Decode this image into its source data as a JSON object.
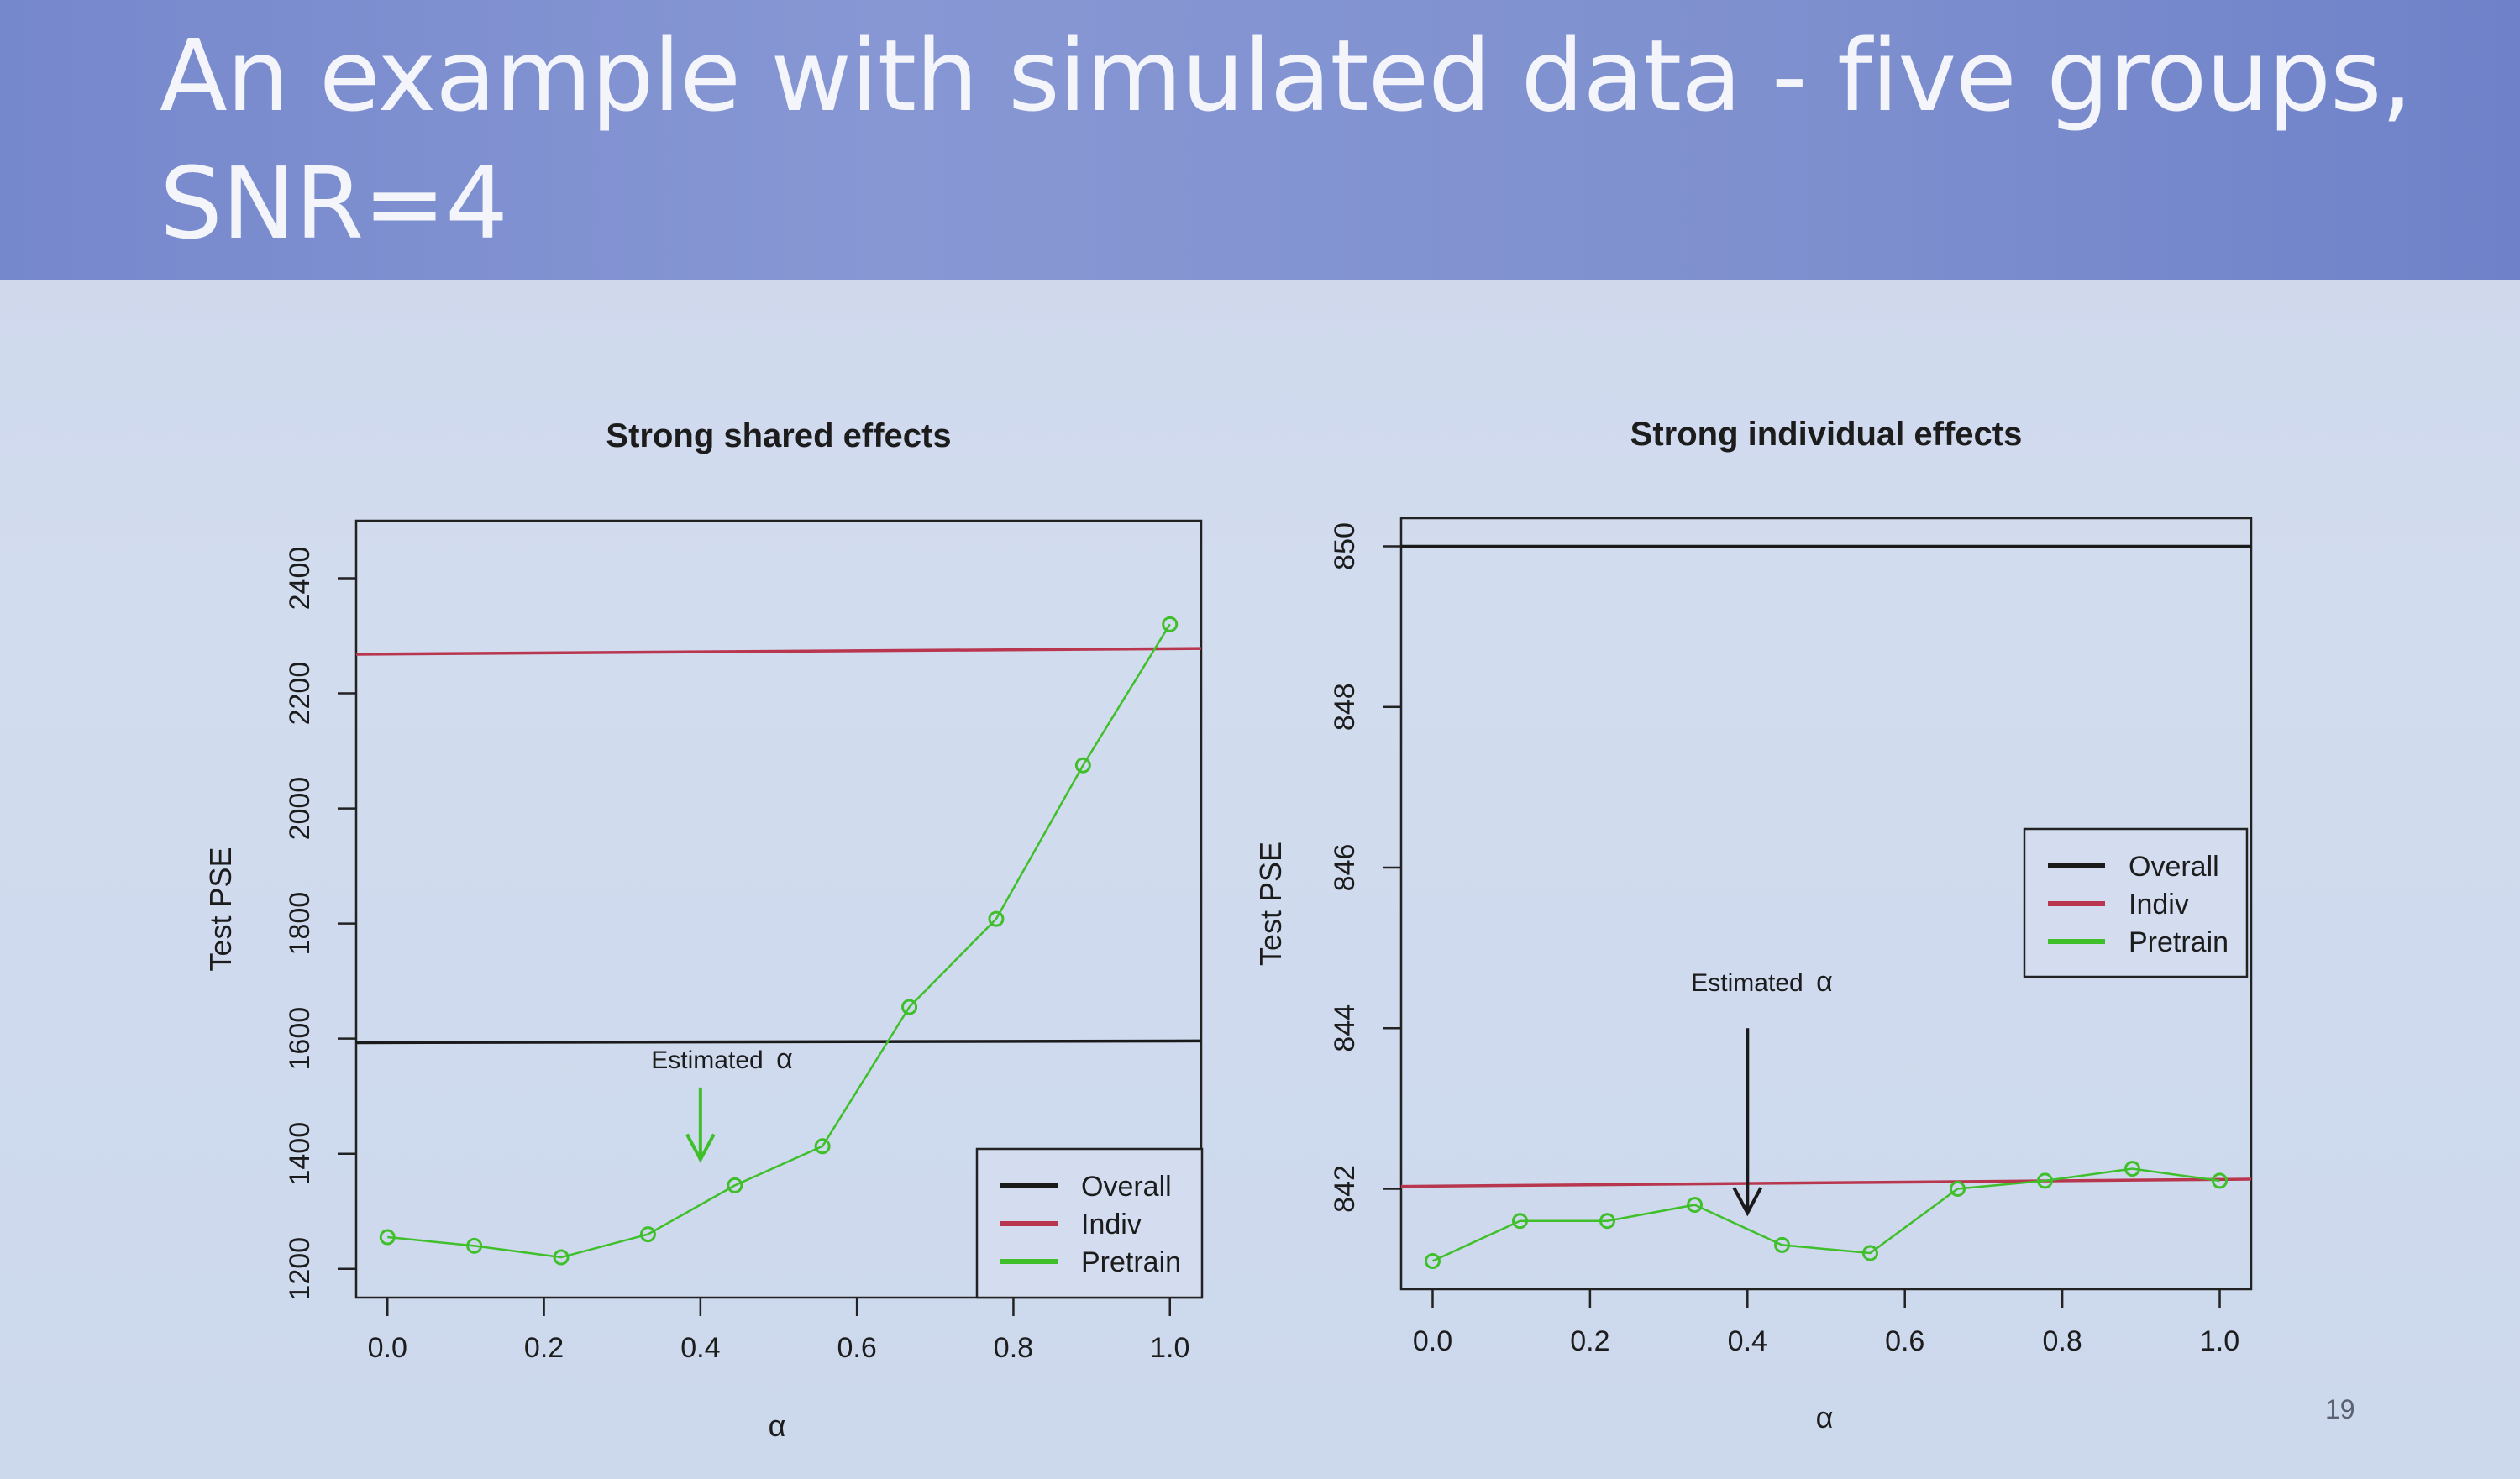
{
  "slide": {
    "title": "An example with simulated data - five groups, SNR=4",
    "page_number": "19"
  },
  "colors": {
    "overall": "#1a1a1a",
    "indiv": "#b8374f",
    "pretrain": "#3fbf2a",
    "title_bar": "#7d8ecf"
  },
  "chart_data": [
    {
      "type": "line",
      "title": "Strong shared effects",
      "xlabel": "α",
      "ylabel": "Test PSE",
      "xlim": [
        -0.04,
        1.04
      ],
      "ylim": [
        1150,
        2500
      ],
      "xticks": [
        0.0,
        0.2,
        0.4,
        0.6,
        0.8,
        1.0
      ],
      "xtick_labels": [
        "0.0",
        "0.2",
        "0.4",
        "0.6",
        "0.8",
        "1.0"
      ],
      "yticks": [
        1200,
        1400,
        1600,
        1800,
        2000,
        2200,
        2400
      ],
      "ytick_labels": [
        "1200",
        "1400",
        "1600",
        "1800",
        "2000",
        "2200",
        "2400"
      ],
      "legend": {
        "placement": "bottom-right",
        "entries": [
          "Overall",
          "Indiv",
          "Pretrain"
        ]
      },
      "series": [
        {
          "name": "Overall",
          "kind": "hline",
          "values": [
            1593,
            1596
          ],
          "x": [
            -0.04,
            1.04
          ]
        },
        {
          "name": "Indiv",
          "kind": "hline",
          "values": [
            2268,
            2278
          ],
          "x": [
            -0.04,
            1.04
          ]
        },
        {
          "name": "Pretrain",
          "kind": "points-line",
          "x": [
            0.0,
            0.111,
            0.222,
            0.333,
            0.444,
            0.556,
            0.667,
            0.778,
            0.889,
            1.0
          ],
          "values": [
            1255,
            1240,
            1220,
            1260,
            1345,
            1413,
            1655,
            1808,
            2075,
            2320
          ]
        }
      ],
      "annotation": {
        "text": "Estimated",
        "symbol": "α",
        "x": 0.4,
        "y_tip": 1390,
        "y_top": 1515
      }
    },
    {
      "type": "line",
      "title": "Strong individual effects",
      "xlabel": "α",
      "ylabel": "Test PSE",
      "xlim": [
        -0.04,
        1.04
      ],
      "ylim": [
        840.75,
        850.35
      ],
      "xticks": [
        0.0,
        0.2,
        0.4,
        0.6,
        0.8,
        1.0
      ],
      "xtick_labels": [
        "0.0",
        "0.2",
        "0.4",
        "0.6",
        "0.8",
        "1.0"
      ],
      "yticks": [
        842,
        844,
        846,
        848,
        850
      ],
      "ytick_labels": [
        "842",
        "844",
        "846",
        "848",
        "850"
      ],
      "legend": {
        "placement": "right",
        "entries": [
          "Overall",
          "Indiv",
          "Pretrain"
        ]
      },
      "series": [
        {
          "name": "Overall",
          "kind": "hline",
          "values": [
            850.0,
            850.0
          ],
          "x": [
            -0.04,
            1.04
          ]
        },
        {
          "name": "Indiv",
          "kind": "hline",
          "values": [
            842.03,
            842.12
          ],
          "x": [
            -0.04,
            1.04
          ]
        },
        {
          "name": "Pretrain",
          "kind": "points-line",
          "x": [
            0.0,
            0.111,
            0.222,
            0.333,
            0.444,
            0.556,
            0.667,
            0.778,
            0.889,
            1.0
          ],
          "values": [
            841.1,
            841.6,
            841.6,
            841.8,
            841.3,
            841.2,
            842.0,
            842.1,
            842.25,
            842.1
          ]
        }
      ],
      "annotation": {
        "text": "Estimated",
        "symbol": "α",
        "x": 0.4,
        "y_tip": 841.7,
        "y_top": 844.0
      }
    }
  ]
}
